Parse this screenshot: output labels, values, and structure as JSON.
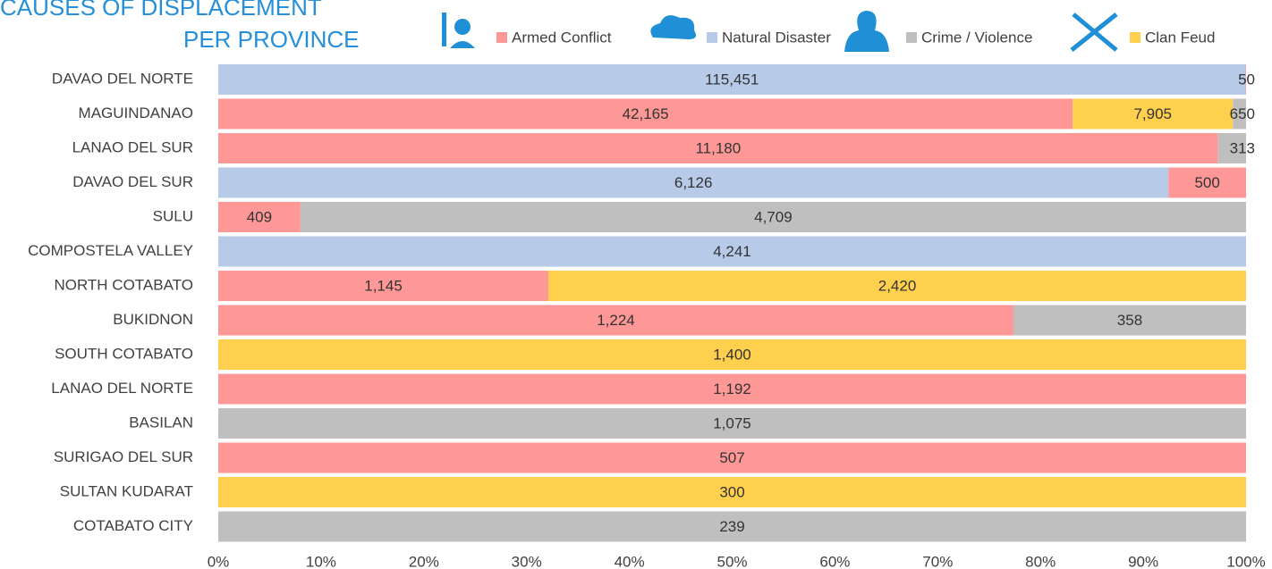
{
  "chart_data": {
    "type": "bar",
    "orientation": "horizontal",
    "stacking": "percent",
    "title": [
      "CAUSES OF DISPLACEMENT",
      "PER PROVINCE"
    ],
    "categories": [
      "DAVAO DEL NORTE",
      "MAGUINDANAO",
      "LANAO DEL SUR",
      "DAVAO DEL SUR",
      "SULU",
      "COMPOSTELA VALLEY",
      "NORTH COTABATO",
      "BUKIDNON",
      "SOUTH COTABATO",
      "LANAO DEL NORTE",
      "BASILAN",
      "SURIGAO DEL SUR",
      "SULTAN KUDARAT",
      "COTABATO CITY"
    ],
    "series": [
      {
        "name": "Armed Conflict",
        "color": "#fe9896",
        "values": [
          50,
          42165,
          11180,
          500,
          409,
          null,
          1145,
          1224,
          null,
          1192,
          null,
          507,
          null,
          null
        ],
        "value_labels": [
          "50",
          "42,165",
          "11,180",
          "500",
          "409",
          null,
          "1,145",
          "1,224",
          null,
          "1,192",
          null,
          "507",
          null,
          null
        ]
      },
      {
        "name": "Natural Disaster",
        "color": "#b7cae8",
        "values": [
          115451,
          null,
          null,
          6126,
          null,
          4241,
          null,
          null,
          null,
          null,
          null,
          null,
          null,
          null
        ],
        "value_labels": [
          "115,451",
          null,
          null,
          "6,126",
          null,
          "4,241",
          null,
          null,
          null,
          null,
          null,
          null,
          null,
          null
        ]
      },
      {
        "name": "Crime / Violence",
        "color": "#bfbfbf",
        "values": [
          null,
          650,
          313,
          null,
          4709,
          null,
          null,
          358,
          null,
          null,
          1075,
          null,
          null,
          239
        ],
        "value_labels": [
          null,
          "650",
          "313",
          null,
          "4,709",
          null,
          null,
          "358",
          null,
          null,
          "1,075",
          null,
          null,
          "239"
        ]
      },
      {
        "name": "Clan Feud",
        "color": "#ffd04e",
        "values": [
          null,
          7905,
          null,
          null,
          null,
          null,
          2420,
          null,
          1400,
          null,
          null,
          null,
          300,
          null
        ],
        "value_labels": [
          null,
          "7,905",
          null,
          null,
          null,
          null,
          "2,420",
          null,
          "1,400",
          null,
          null,
          null,
          "300",
          null
        ]
      }
    ],
    "xlim": [
      0,
      100
    ],
    "xticks": [
      {
        "value": 0,
        "label": "0%"
      },
      {
        "value": 10,
        "label": "10%"
      },
      {
        "value": 20,
        "label": "20%"
      },
      {
        "value": 30,
        "label": "30%"
      },
      {
        "value": 40,
        "label": "40%"
      },
      {
        "value": 50,
        "label": "50%"
      },
      {
        "value": 60,
        "label": "60%"
      },
      {
        "value": 70,
        "label": "70%"
      },
      {
        "value": 80,
        "label": "80%"
      },
      {
        "value": 90,
        "label": "90%"
      },
      {
        "value": 100,
        "label": "100%"
      }
    ]
  }
}
